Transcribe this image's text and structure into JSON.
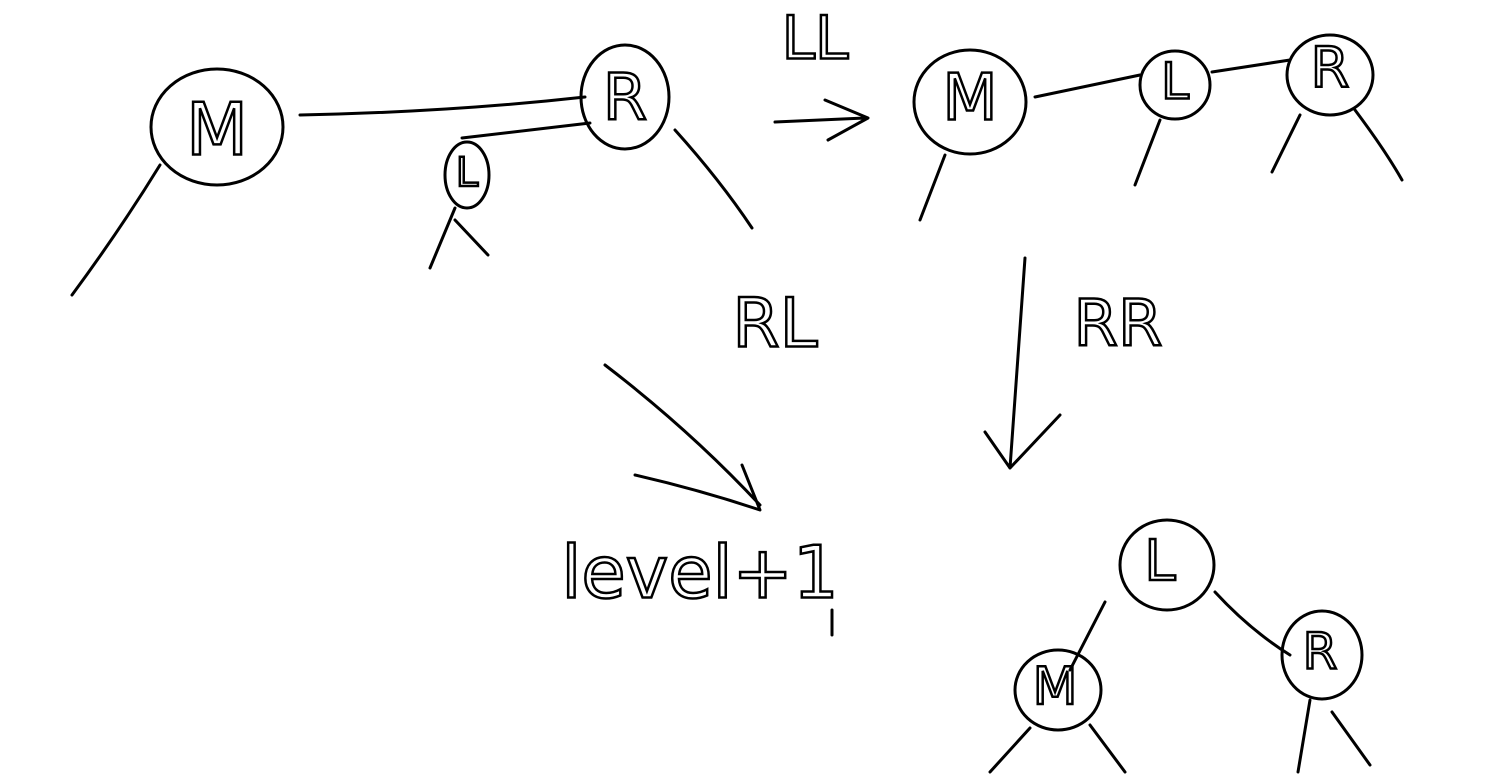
{
  "nodes": [
    {
      "label": "M"
    },
    {
      "label": "R"
    },
    {
      "label": "L"
    },
    {
      "label": "M"
    },
    {
      "label": "L"
    },
    {
      "label": "R"
    },
    {
      "label": "L"
    },
    {
      "label": "M"
    },
    {
      "label": "R"
    }
  ],
  "transitions": [
    {
      "label": "LL"
    },
    {
      "label": "RL"
    },
    {
      "label": "RR"
    }
  ],
  "note": "level+1"
}
